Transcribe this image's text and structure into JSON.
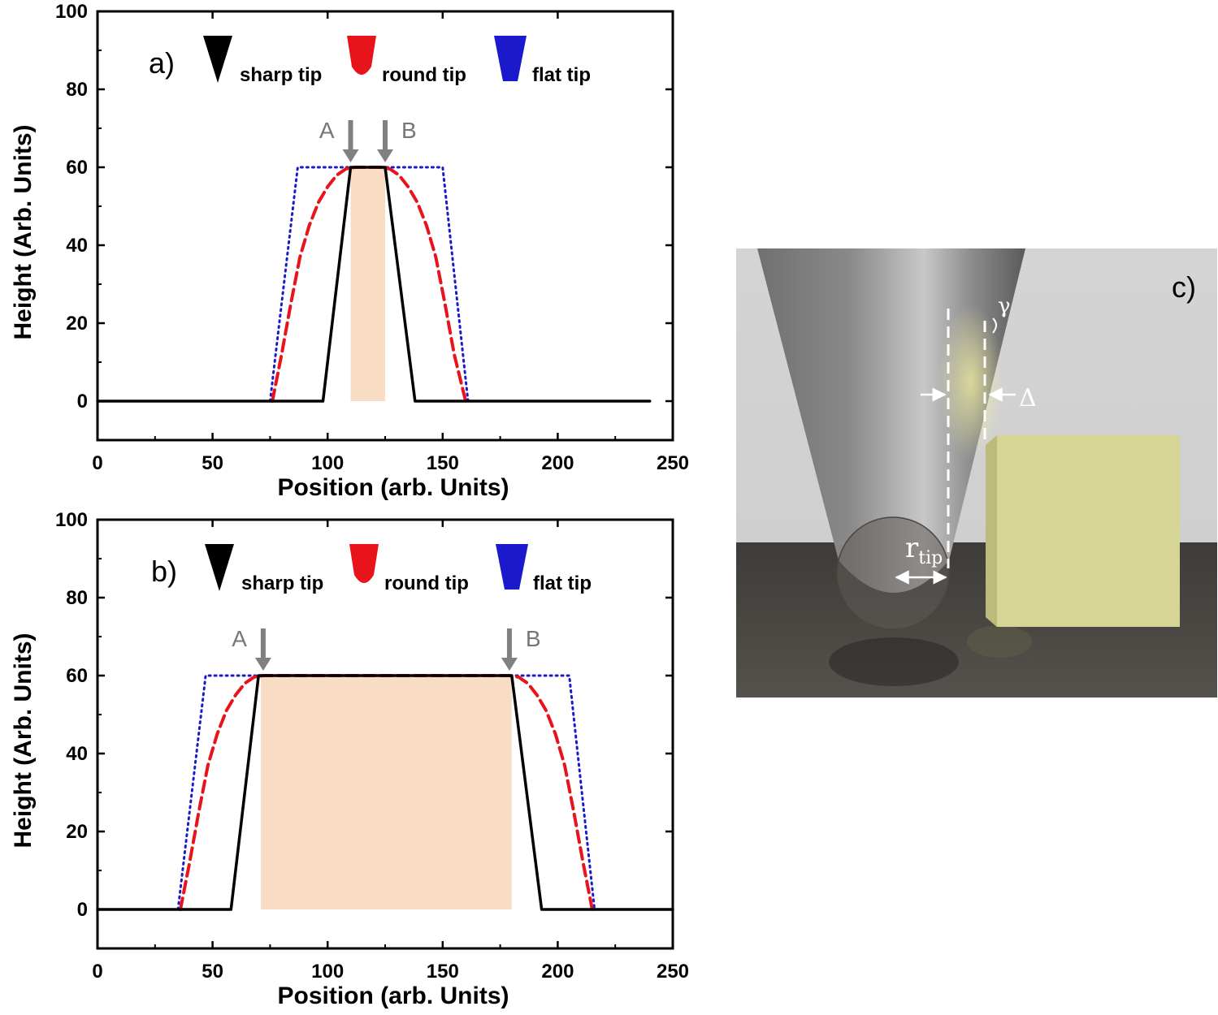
{
  "colors": {
    "sharp": "#000000",
    "round": "#e8141c",
    "flat": "#1a1acc",
    "shade": "#f8dcc4",
    "arrow": "#808080"
  },
  "chart_data": [
    {
      "type": "line",
      "panel_label": "a)",
      "xlabel": "Position (arb. Units)",
      "ylabel": "Height (Arb. Units)",
      "xlim": [
        0,
        250
      ],
      "ylim": [
        -10,
        100
      ],
      "xticks": [
        "0",
        "50",
        "100",
        "150",
        "200",
        "250"
      ],
      "yticks": [
        "0",
        "20",
        "40",
        "60",
        "80",
        "100"
      ],
      "shaded_region": {
        "x": [
          110,
          125
        ],
        "y": [
          0,
          60
        ]
      },
      "markers": [
        {
          "label": "A",
          "x": 110
        },
        {
          "label": "B",
          "x": 125
        }
      ],
      "legend": [
        "sharp tip",
        "round tip",
        "flat tip"
      ],
      "series": [
        {
          "name": "sharp tip",
          "style": "solid",
          "x": [
            0,
            98,
            110,
            125,
            138,
            240
          ],
          "y": [
            0,
            0,
            60,
            60,
            0,
            0
          ]
        },
        {
          "name": "round tip",
          "style": "dashed",
          "x": [
            76,
            80,
            84,
            88,
            92,
            96,
            100,
            104,
            108,
            112,
            123,
            127,
            131,
            135,
            139,
            143,
            147,
            151,
            155,
            160
          ],
          "y": [
            0,
            12,
            25,
            37,
            45,
            51,
            55,
            58,
            59.6,
            60,
            60,
            59.6,
            58,
            55,
            51,
            45,
            37,
            25,
            12,
            0
          ]
        },
        {
          "name": "flat tip",
          "style": "dotted",
          "x": [
            75,
            87,
            150,
            161
          ],
          "y": [
            0,
            60,
            60,
            0
          ]
        }
      ]
    },
    {
      "type": "line",
      "panel_label": "b)",
      "xlabel": "Position (arb. Units)",
      "ylabel": "Height (Arb. Units)",
      "xlim": [
        0,
        250
      ],
      "ylim": [
        -10,
        100
      ],
      "xticks": [
        "0",
        "50",
        "100",
        "150",
        "200",
        "250"
      ],
      "yticks": [
        "0",
        "20",
        "40",
        "60",
        "80",
        "100"
      ],
      "shaded_region": {
        "x": [
          71,
          180
        ],
        "y": [
          0,
          60
        ]
      },
      "markers": [
        {
          "label": "A",
          "x": 72
        },
        {
          "label": "B",
          "x": 179
        }
      ],
      "legend": [
        "sharp tip",
        "round tip",
        "flat tip"
      ],
      "series": [
        {
          "name": "sharp tip",
          "style": "solid",
          "x": [
            0,
            58,
            70,
            180,
            193,
            250
          ],
          "y": [
            0,
            0,
            60,
            60,
            0,
            0
          ]
        },
        {
          "name": "round tip",
          "style": "dashed",
          "x": [
            36,
            40,
            44,
            48,
            52,
            56,
            60,
            64,
            68,
            72,
            179,
            183,
            187,
            191,
            195,
            199,
            203,
            207,
            211,
            215
          ],
          "y": [
            0,
            12,
            25,
            37,
            45,
            51,
            55,
            58,
            59.6,
            60,
            60,
            59.6,
            58,
            55,
            51,
            45,
            37,
            25,
            12,
            0
          ]
        },
        {
          "name": "flat tip",
          "style": "dotted",
          "x": [
            35,
            47,
            205,
            216
          ],
          "y": [
            0,
            60,
            60,
            0
          ]
        }
      ]
    }
  ],
  "render": {
    "panel_label": "c)",
    "gamma_label": "γ",
    "delta_label": "Δ",
    "radius_label": "r",
    "radius_subscript": "tip"
  }
}
